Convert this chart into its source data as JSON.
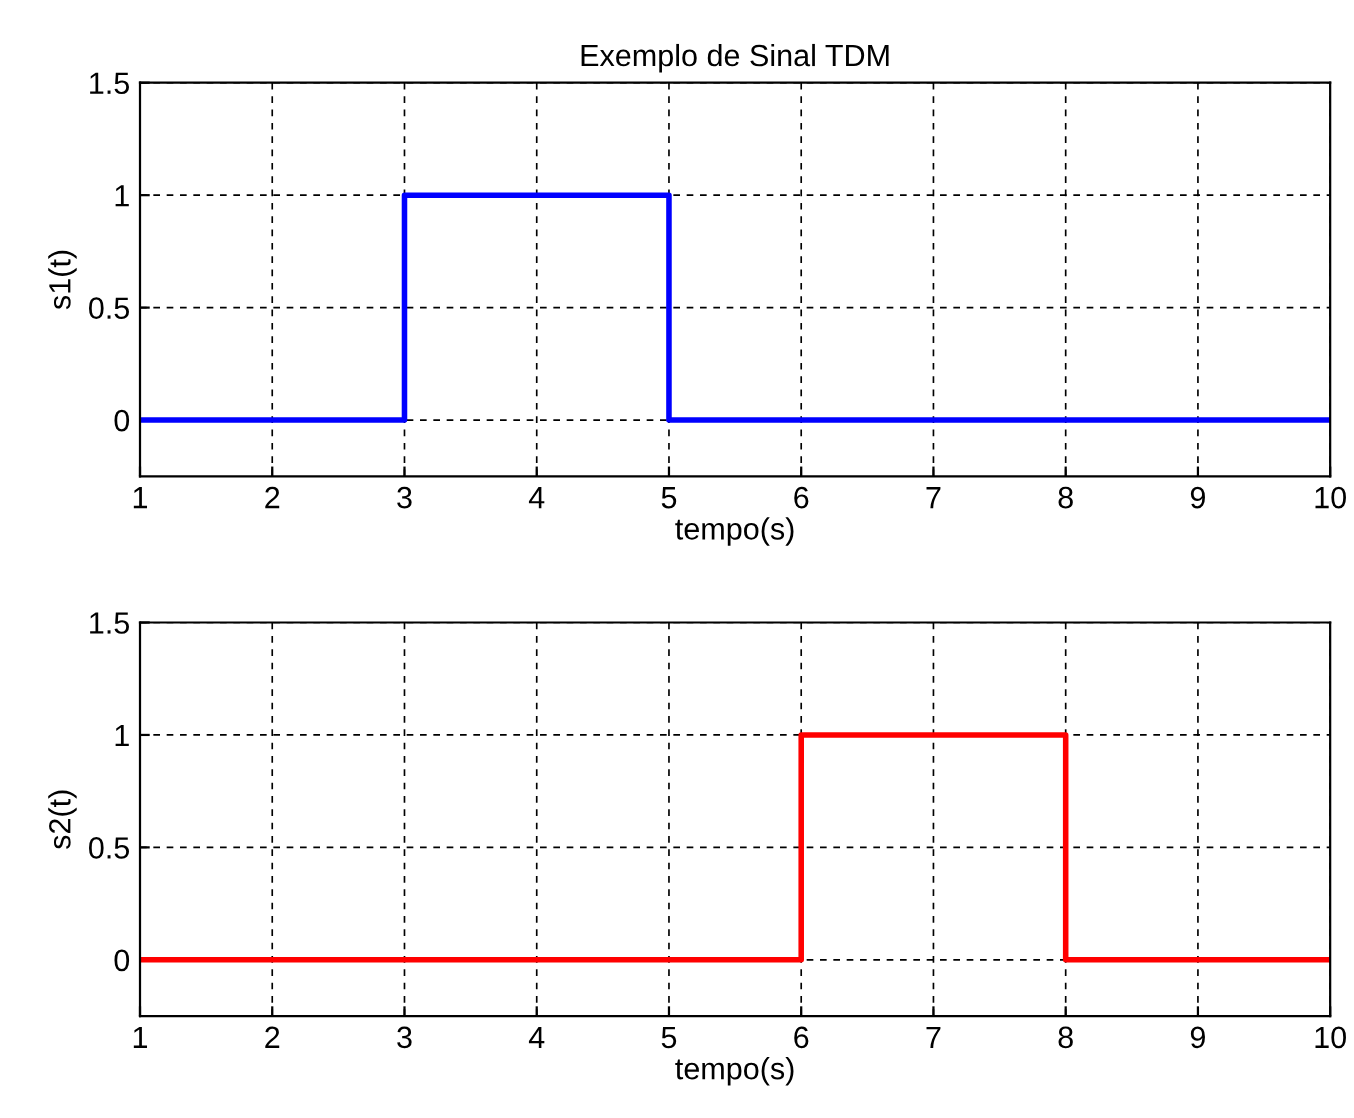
{
  "chart_data": [
    {
      "type": "line",
      "title": "Exemplo de Sinal TDM",
      "xlabel": "tempo(s)",
      "ylabel": "s1(t)",
      "xlim": [
        1,
        10
      ],
      "xticks": [
        1,
        2,
        3,
        4,
        5,
        6,
        7,
        8,
        9,
        10
      ],
      "ylim": [
        -0.25,
        1.5
      ],
      "yticks": [
        0,
        0.5,
        1,
        1.5
      ],
      "grid": true,
      "line_style": "solid",
      "marker": "none",
      "series": [
        {
          "color": "#0000ff",
          "x": [
            1,
            3,
            3,
            5,
            5,
            10
          ],
          "values": [
            0,
            0,
            1,
            1,
            0,
            0
          ]
        }
      ]
    },
    {
      "type": "line",
      "xlabel": "tempo(s)",
      "ylabel": "s2(t)",
      "xlim": [
        1,
        10
      ],
      "xticks": [
        1,
        2,
        3,
        4,
        5,
        6,
        7,
        8,
        9,
        10
      ],
      "ylim": [
        -0.25,
        1.5
      ],
      "yticks": [
        0,
        0.5,
        1,
        1.5
      ],
      "grid": true,
      "line_style": "solid",
      "marker": "none",
      "series": [
        {
          "color": "#ff0000",
          "x": [
            1,
            6,
            6,
            8,
            8,
            10
          ],
          "values": [
            0,
            0,
            1,
            1,
            0,
            0
          ]
        }
      ]
    }
  ]
}
